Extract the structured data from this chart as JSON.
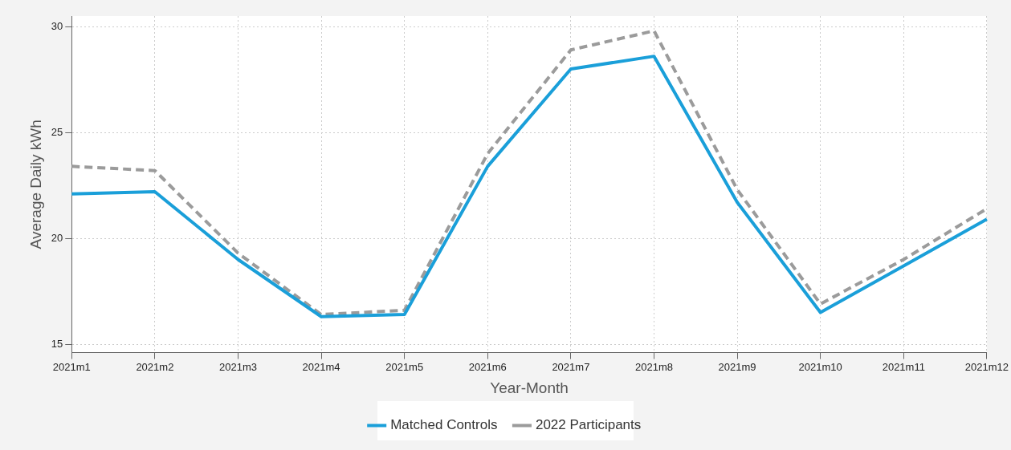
{
  "chart_data": {
    "type": "line",
    "xlabel": "Year-Month",
    "ylabel": "Average Daily kWh",
    "categories": [
      "2021m1",
      "2021m2",
      "2021m3",
      "2021m4",
      "2021m5",
      "2021m6",
      "2021m7",
      "2021m8",
      "2021m9",
      "2021m10",
      "2021m11",
      "2021m12"
    ],
    "series": [
      {
        "name": "Matched Controls",
        "color": "#1a9fd9",
        "line_style": "solid",
        "values": [
          22.1,
          22.2,
          19.0,
          16.3,
          16.4,
          23.4,
          28.0,
          28.6,
          21.7,
          16.5,
          18.7,
          20.9
        ]
      },
      {
        "name": "2022 Participants",
        "color": "#9b9b9b",
        "line_style": "dashed",
        "values": [
          23.4,
          23.2,
          19.3,
          16.4,
          16.6,
          24.0,
          28.9,
          29.8,
          22.3,
          16.9,
          19.0,
          21.4
        ]
      }
    ],
    "ylim": [
      14.6,
      30.5
    ],
    "yticks": [
      15,
      20,
      25,
      30
    ],
    "grid": true,
    "legend": "bottom",
    "marker": "none"
  }
}
